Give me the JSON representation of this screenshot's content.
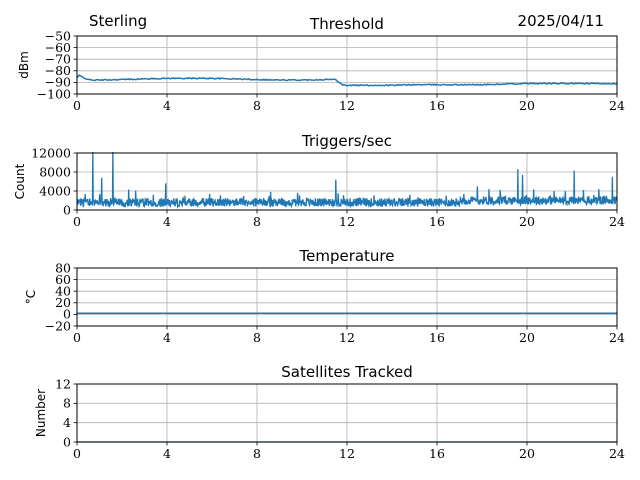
{
  "header": {
    "site": "Sterling",
    "date": "2025/04/11"
  },
  "colors": {
    "series": "#1f77b4",
    "grid": "#b0b0b0",
    "axis": "#000000"
  },
  "chart_data": [
    {
      "type": "line",
      "title": "Threshold",
      "xlabel": "",
      "ylabel": "dBm",
      "xlim": [
        0,
        24
      ],
      "ylim": [
        -100,
        -50
      ],
      "xticks": [
        0,
        4,
        8,
        12,
        16,
        20,
        24
      ],
      "yticks": [
        -50,
        -60,
        -70,
        -80,
        -90,
        -100
      ],
      "ytick_labels": [
        "−50",
        "−60",
        "−70",
        "−80",
        "−90",
        "−100"
      ],
      "grid": true,
      "series": [
        {
          "x": [
            0,
            0.1,
            0.3,
            0.6,
            1,
            2,
            3,
            4,
            5,
            6,
            7,
            8,
            9,
            10,
            11,
            11.5,
            11.6,
            11.8,
            12,
            13,
            14,
            15,
            16,
            17,
            18,
            19,
            20,
            21,
            22,
            23,
            24
          ],
          "y": [
            -86,
            -84,
            -86,
            -88,
            -88,
            -87.5,
            -87,
            -86.5,
            -86.5,
            -86.5,
            -87,
            -87.5,
            -88,
            -88,
            -87.5,
            -87.5,
            -89,
            -92,
            -92.5,
            -92.5,
            -92.5,
            -92,
            -92,
            -92,
            -92,
            -91.5,
            -91,
            -91,
            -91,
            -91,
            -91
          ]
        }
      ]
    },
    {
      "type": "line",
      "title": "Triggers/sec",
      "xlabel": "",
      "ylabel": "Count",
      "xlim": [
        0,
        24
      ],
      "ylim": [
        0,
        12000
      ],
      "xticks": [
        0,
        4,
        8,
        12,
        16,
        20,
        24
      ],
      "yticks": [
        0,
        4000,
        8000,
        12000
      ],
      "ytick_labels": [
        "0",
        "4000",
        "8000",
        "12000"
      ],
      "grid": true,
      "baseline": 1600,
      "spikes": [
        {
          "x": 0.7,
          "y": 12200
        },
        {
          "x": 1.1,
          "y": 6800
        },
        {
          "x": 1.6,
          "y": 12200
        },
        {
          "x": 2.3,
          "y": 4300
        },
        {
          "x": 2.6,
          "y": 4100
        },
        {
          "x": 3.4,
          "y": 3200
        },
        {
          "x": 3.95,
          "y": 5600
        },
        {
          "x": 4.8,
          "y": 3000
        },
        {
          "x": 5.9,
          "y": 3400
        },
        {
          "x": 7.4,
          "y": 2900
        },
        {
          "x": 8.6,
          "y": 3800
        },
        {
          "x": 9.8,
          "y": 3600
        },
        {
          "x": 11.5,
          "y": 6400
        },
        {
          "x": 11.6,
          "y": 3500
        },
        {
          "x": 13.2,
          "y": 3100
        },
        {
          "x": 14.8,
          "y": 3200
        },
        {
          "x": 16.4,
          "y": 3000
        },
        {
          "x": 17.2,
          "y": 3400
        },
        {
          "x": 17.8,
          "y": 5000
        },
        {
          "x": 18.3,
          "y": 4400
        },
        {
          "x": 18.8,
          "y": 4200
        },
        {
          "x": 19.6,
          "y": 8600
        },
        {
          "x": 19.8,
          "y": 7400
        },
        {
          "x": 20.3,
          "y": 4300
        },
        {
          "x": 21.2,
          "y": 4000
        },
        {
          "x": 22.1,
          "y": 8300
        },
        {
          "x": 22.5,
          "y": 4200
        },
        {
          "x": 23.2,
          "y": 4400
        },
        {
          "x": 23.8,
          "y": 7000
        }
      ]
    },
    {
      "type": "line",
      "title": "Temperature",
      "xlabel": "",
      "ylabel": "°C",
      "xlim": [
        0,
        24
      ],
      "ylim": [
        -20,
        80
      ],
      "xticks": [
        0,
        4,
        8,
        12,
        16,
        20,
        24
      ],
      "yticks": [
        80,
        60,
        40,
        20,
        0,
        -20
      ],
      "ytick_labels": [
        "80",
        "60",
        "40",
        "20",
        "0",
        "−20"
      ],
      "grid": true,
      "series": [
        {
          "x": [
            0,
            24
          ],
          "y": [
            2,
            2
          ]
        }
      ]
    },
    {
      "type": "line",
      "title": "Satellites Tracked",
      "xlabel": "",
      "ylabel": "Number",
      "xlim": [
        0,
        24
      ],
      "ylim": [
        0,
        12
      ],
      "xticks": [
        0,
        4,
        8,
        12,
        16,
        20,
        24
      ],
      "yticks": [
        12,
        8,
        4,
        0
      ],
      "ytick_labels": [
        "12",
        "8",
        "4",
        "0"
      ],
      "grid": true,
      "series": [
        {
          "x": [
            0,
            24
          ],
          "y": [
            0,
            0
          ]
        }
      ]
    }
  ]
}
